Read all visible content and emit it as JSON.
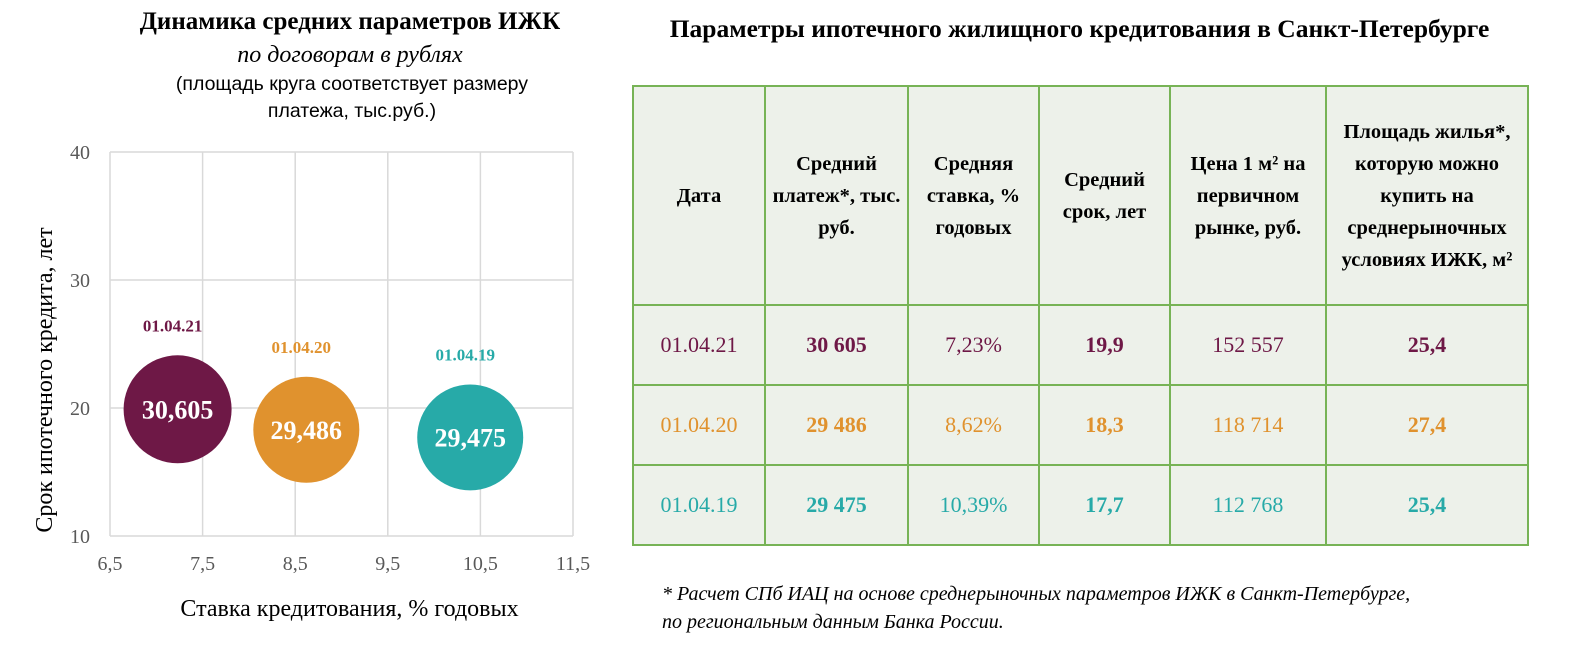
{
  "left_chart": {
    "title": "Динамика средних параметров ИЖК",
    "subtitle": "по договорам в рублях",
    "note_line1": "(площадь круга соответствует размеру",
    "note_line2": "платежа, тыс.руб.)"
  },
  "chart_data": {
    "type": "scatter",
    "xlabel": "Ставка кредитования, % годовых",
    "ylabel": "Срок ипотечного кредита, лет",
    "xlim": [
      6.5,
      11.5
    ],
    "ylim": [
      10,
      40
    ],
    "x_ticks": [
      "6,5",
      "7,5",
      "8,5",
      "9,5",
      "10,5",
      "11,5"
    ],
    "y_ticks": [
      "10",
      "20",
      "30",
      "40"
    ],
    "grid": true,
    "series": [
      {
        "name": "01.04.21",
        "x": 7.23,
        "y": 19.9,
        "size": 30.605,
        "label": "30,605",
        "color": "#6e1846"
      },
      {
        "name": "01.04.20",
        "x": 8.62,
        "y": 18.3,
        "size": 29.486,
        "label": "29,486",
        "color": "#e0922e"
      },
      {
        "name": "01.04.19",
        "x": 10.39,
        "y": 17.7,
        "size": 29.475,
        "label": "29,475",
        "color": "#27aaa8"
      }
    ]
  },
  "table": {
    "title": "Параметры ипотечного жилищного кредитования в Санкт-Петербурге",
    "headers": [
      "Дата",
      "Средний платеж*, тыс. руб.",
      "Средняя ставка, % годовых",
      "Средний срок, лет",
      "Цена 1 м² на первичном рынке, руб.",
      "Площадь жилья*, которую можно купить на среднерыночных условиях ИЖК, м²"
    ],
    "rows": [
      [
        "01.04.21",
        "30 605",
        "7,23%",
        "19,9",
        "152 557",
        "25,4"
      ],
      [
        "01.04.20",
        "29 486",
        "8,62%",
        "18,3",
        "118 714",
        "27,4"
      ],
      [
        "01.04.19",
        "29 475",
        "10,39%",
        "17,7",
        "112 768",
        "25,4"
      ]
    ]
  },
  "footnote": {
    "line1": "* Расчет СПб ИАЦ на основе среднерыночных параметров ИЖК в Санкт-Петербурге,",
    "line2": "по региональным данным Банка России."
  }
}
